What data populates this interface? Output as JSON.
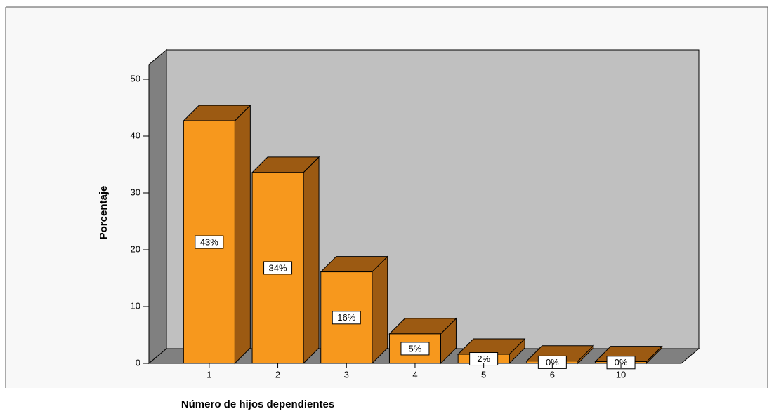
{
  "chart_data": {
    "type": "bar",
    "x_label": "Número de hijos dependientes",
    "y_label": "Porcentaje",
    "categories": [
      "1",
      "2",
      "3",
      "4",
      "5",
      "6",
      "10"
    ],
    "values": [
      42.7,
      33.6,
      16.1,
      5.2,
      1.6,
      0.4,
      0.3
    ],
    "value_labels": [
      "43%",
      "34%",
      "16%",
      "5%",
      "2%",
      "0%",
      "0%"
    ],
    "color": "#f7981d",
    "ylim": [
      0,
      50
    ],
    "yticks": [
      0,
      10,
      20,
      30,
      40,
      50
    ]
  }
}
